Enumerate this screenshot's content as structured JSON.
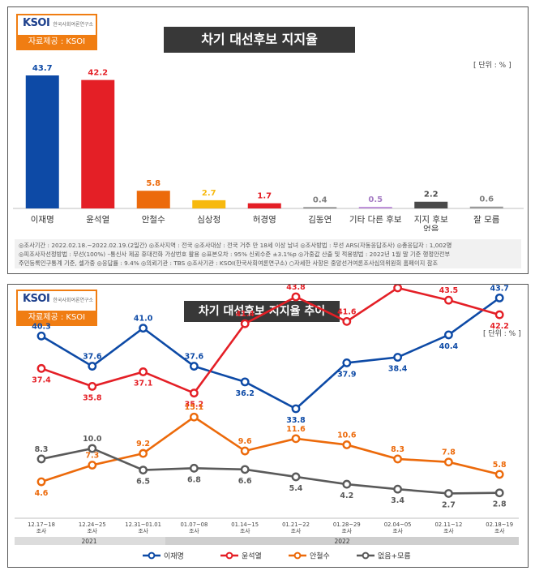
{
  "panel1": {
    "logo_text": "KSOI",
    "logo_sub": "한국사회여론연구소",
    "source_label": "자료제공 : KSOI",
    "title": "차기 대선후보 지지율",
    "unit": "[ 단위 : % ]",
    "footnote_line1": "◎조사기간 : 2022.02.18.~2022.02.19.(2일간)  ◎조사지역 : 전국  ◎조사대상 : 전국 거주 만 18세 이상 남녀  ◎조사방법 : 무선 ARS(자동응답조사)  ◎총응답자 : 1,002명",
    "footnote_line2": "◎피조사자선정방법 : 무선(100%) –통신사 제공 휴대전화 가상번호 활용  ◎표본오차 : 95% 신뢰수준 ±3.1%p  ◎가중값 산출 및 적용방법 : 2022년 1월 말 기준 행정안전부",
    "footnote_line3": "주민등록인구통계 기준, 셀가중  ◎응답률 : 9.4%  ◎의뢰기관 : TBS  ◎조사기관 : KSOI(한국사회여론연구소)  ○자세한 사항은 중앙선거여론조사심의위원회 홈페이지 참조"
  },
  "panel2": {
    "logo_text": "KSOI",
    "logo_sub": "한국사회여론연구소",
    "source_label": "자료제공 : KSOI",
    "title": "차기 대선후보 지지율 추이",
    "unit": "[ 단위 : % ]",
    "year_2021": "2021",
    "year_2022": "2022"
  },
  "chart_data": [
    {
      "type": "bar",
      "title": "차기 대선후보 지지율",
      "categories": [
        "이재명",
        "윤석열",
        "안철수",
        "심상정",
        "허경영",
        "김동연",
        "기타 다른 후보",
        "지지 후보|없음",
        "잘 모름"
      ],
      "values": [
        43.7,
        42.2,
        5.8,
        2.7,
        1.7,
        0.4,
        0.5,
        2.2,
        0.6
      ],
      "colors": [
        "#0d4aa6",
        "#e41f26",
        "#ec6a0b",
        "#f7b90e",
        "#e41f26",
        "#7f7f7f",
        "#b98ad6",
        "#4a4a4a",
        "#9a9a9a"
      ],
      "label_colors": [
        "#0d4aa6",
        "#e41f26",
        "#ec6a0b",
        "#f7b90e",
        "#e41f26",
        "#7f7f7f",
        "#a57cc4",
        "#4a4a4a",
        "#7f7f7f"
      ],
      "ylim": [
        0,
        50
      ],
      "unit": "%"
    },
    {
      "type": "line",
      "title": "차기 대선후보 지지율 추이",
      "categories": [
        "12.17~18|조사",
        "12.24~25|조사",
        "12.31~01.01|조사",
        "01.07~08|조사",
        "01.14~15|조사",
        "01.21~22|조사",
        "01.28~29|조사",
        "02.04~05|조사",
        "02.11~12|조사",
        "02.18~19|조사"
      ],
      "series": [
        {
          "name": "이재명",
          "color": "#0d4aa6",
          "values": [
            40.3,
            37.6,
            41.0,
            37.6,
            36.2,
            33.8,
            37.9,
            38.4,
            40.4,
            43.7
          ]
        },
        {
          "name": "윤석열",
          "color": "#e41f26",
          "values": [
            37.4,
            35.8,
            37.1,
            35.2,
            41.4,
            43.8,
            41.6,
            44.6,
            43.5,
            42.2
          ]
        },
        {
          "name": "안철수",
          "color": "#ec6a0b",
          "values": [
            4.6,
            7.3,
            9.2,
            15.1,
            9.6,
            11.6,
            10.6,
            8.3,
            7.8,
            5.8
          ]
        },
        {
          "name": "없음+모름",
          "color": "#5a5a5a",
          "values": [
            8.3,
            10.0,
            6.5,
            6.8,
            6.6,
            5.4,
            4.2,
            3.4,
            2.7,
            2.8
          ]
        }
      ],
      "unit": "%"
    }
  ]
}
